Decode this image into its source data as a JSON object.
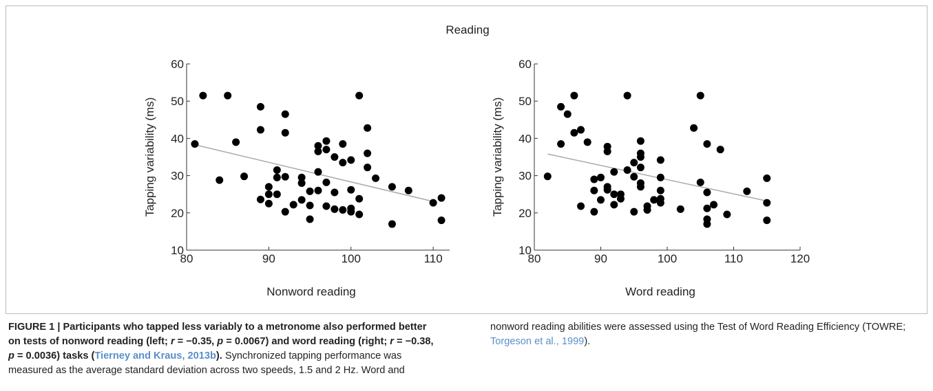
{
  "title": "Reading",
  "chart_data": [
    {
      "type": "scatter",
      "xlabel": "Nonword reading",
      "ylabel": "Tapping variability (ms)",
      "color": "#000000",
      "xlim": [
        80,
        112
      ],
      "xticks": [
        80,
        90,
        100,
        110
      ],
      "ylim": [
        10,
        60
      ],
      "yticks": [
        10,
        20,
        30,
        40,
        50,
        60
      ],
      "x": [
        81,
        82,
        84,
        85,
        86,
        87,
        89,
        89,
        89,
        90,
        90,
        90,
        91,
        91,
        91,
        92,
        92,
        92,
        92,
        93,
        94,
        94,
        94,
        95,
        95,
        95,
        96,
        96,
        96,
        96,
        97,
        97,
        97,
        97,
        98,
        98,
        98,
        99,
        99,
        99,
        100,
        100,
        100,
        100,
        101,
        101,
        101,
        102,
        102,
        102,
        103,
        105,
        105,
        107,
        110,
        111,
        111
      ],
      "values": [
        38.5,
        51.5,
        28.8,
        51.5,
        39,
        29.8,
        48.5,
        42.3,
        23.6,
        27,
        25,
        22.5,
        31.5,
        29.5,
        25,
        46.5,
        41.5,
        29.7,
        20.3,
        22.2,
        29.5,
        28,
        23.5,
        25.8,
        22,
        18.3,
        38,
        36.5,
        31,
        26,
        39.3,
        37,
        28.2,
        21.8,
        35,
        25.5,
        21,
        38.5,
        33.5,
        20.8,
        34.2,
        26.2,
        21.2,
        20.3,
        51.5,
        23.8,
        19.6,
        42.8,
        36,
        32.2,
        29.3,
        27,
        17,
        26,
        22.7,
        24,
        18
      ],
      "trend": {
        "x": [
          81,
          110.5
        ],
        "y": [
          38.3,
          22.8
        ],
        "color": "#aaaaaa"
      }
    },
    {
      "type": "scatter",
      "xlabel": "Word reading",
      "ylabel": "Tapping variability (ms)",
      "color": "#000000",
      "xlim": [
        80,
        120
      ],
      "xticks": [
        80,
        90,
        100,
        110,
        120
      ],
      "ylim": [
        10,
        60
      ],
      "yticks": [
        10,
        20,
        30,
        40,
        50,
        60
      ],
      "x": [
        82,
        84,
        84,
        85,
        86,
        86,
        87,
        87,
        88,
        89,
        89,
        89,
        90,
        90,
        91,
        91,
        91,
        91,
        92,
        92,
        92,
        93,
        93,
        94,
        94,
        95,
        95,
        95,
        96,
        96,
        96,
        96,
        96,
        96,
        97,
        97,
        98,
        99,
        99,
        99,
        99,
        99,
        102,
        104,
        105,
        105,
        106,
        106,
        106,
        106,
        106,
        107,
        108,
        109,
        112,
        115,
        115,
        115
      ],
      "values": [
        29.8,
        48.5,
        38.5,
        46.5,
        51.5,
        41.5,
        42.3,
        21.8,
        39,
        29,
        26,
        20.3,
        29.5,
        23.5,
        37.8,
        36.5,
        27,
        26.2,
        31,
        25,
        22.2,
        25,
        23.8,
        51.5,
        31.5,
        33.5,
        29.7,
        20.3,
        39.3,
        36,
        35,
        32.2,
        28,
        27,
        21.8,
        20.8,
        23.5,
        34.2,
        29.5,
        26,
        23.8,
        22.7,
        21,
        42.8,
        51.5,
        28.2,
        38.5,
        25.5,
        21.2,
        18.3,
        17,
        22.2,
        37,
        19.6,
        25.8,
        29.3,
        22.7,
        18
      ],
      "trend": {
        "x": [
          82,
          115
        ],
        "y": [
          35.8,
          23.2
        ],
        "color": "#aaaaaa"
      }
    }
  ],
  "caption": [
    {
      "text": "FIGURE 1 | Participants who tapped less variably to a metronome also performed better on tests of nonword reading (left; ",
      "style": "bold"
    },
    {
      "text": "r",
      "style": "bolditalic"
    },
    {
      "text": " = −0.35, ",
      "style": "bold"
    },
    {
      "text": "p",
      "style": "bolditalic"
    },
    {
      "text": " = 0.0067) and word reading (right; ",
      "style": "bold"
    },
    {
      "text": "r",
      "style": "bolditalic"
    },
    {
      "text": " = −0.38, ",
      "style": "bold"
    },
    {
      "text": "p",
      "style": "bolditalic"
    },
    {
      "text": " = 0.0036) tasks (",
      "style": "bold"
    },
    {
      "text": "Tierney and Kraus, 2013b",
      "style": "boldlink"
    },
    {
      "text": ").",
      "style": "bold"
    },
    {
      "text": " Synchronized tapping performance was measured as the average standard deviation across two speeds, 1.5 and 2 Hz. Word and nonword reading abilities were assessed using the Test of Word Reading Efficiency (TOWRE; ",
      "style": "normal"
    },
    {
      "text": "Torgeson et al., 1999",
      "style": "link"
    },
    {
      "text": ").",
      "style": "normal"
    }
  ]
}
